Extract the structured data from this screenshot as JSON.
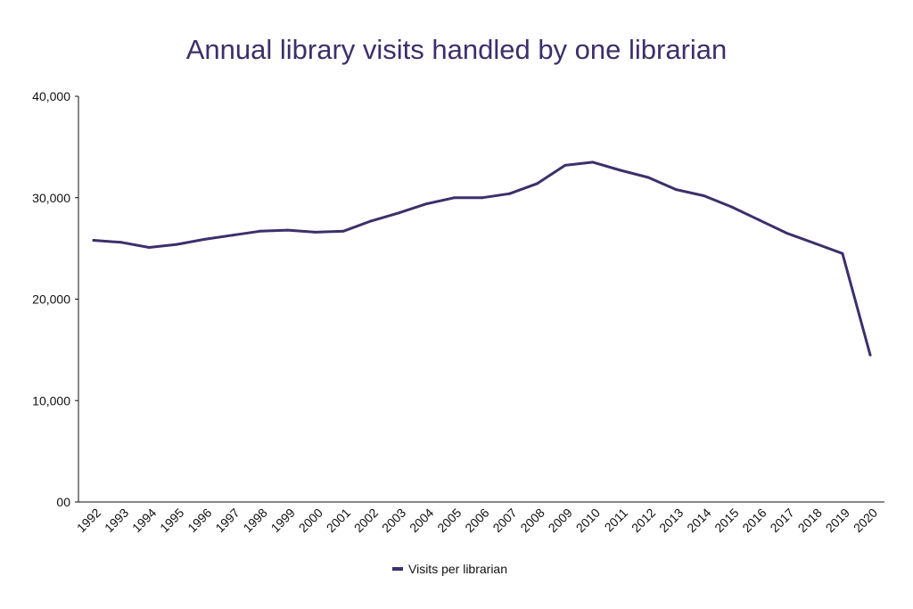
{
  "chart_data": {
    "type": "line",
    "title": "Annual library visits handled by one librarian",
    "xlabel": "",
    "ylabel": "",
    "categories": [
      "1992",
      "1993",
      "1994",
      "1995",
      "1996",
      "1997",
      "1998",
      "1999",
      "2000",
      "2001",
      "2002",
      "2003",
      "2004",
      "2005",
      "2006",
      "2007",
      "2008",
      "2009",
      "2010",
      "2011",
      "2012",
      "2013",
      "2014",
      "2015",
      "2016",
      "2017",
      "2018",
      "2019",
      "2020"
    ],
    "series": [
      {
        "name": "Visits per librarian",
        "values": [
          25800,
          25600,
          25100,
          25400,
          25900,
          26300,
          26700,
          26800,
          26600,
          26700,
          27700,
          28500,
          29400,
          30000,
          30000,
          30400,
          31400,
          33200,
          33500,
          32700,
          32000,
          30800,
          30200,
          29100,
          27800,
          26500,
          25500,
          24500,
          14500
        ]
      }
    ],
    "ylim": [
      0,
      40000
    ],
    "yticks": [
      0,
      10000,
      20000,
      30000,
      40000
    ],
    "ytick_labels": [
      "00",
      "10,000",
      "20,000",
      "30,000",
      "40,000"
    ],
    "legend_position": "bottom-center",
    "grid": false,
    "colors": {
      "line": "#3d2f6b",
      "title": "#3d2f6b",
      "axis": "#111111",
      "text": "#111111"
    }
  }
}
